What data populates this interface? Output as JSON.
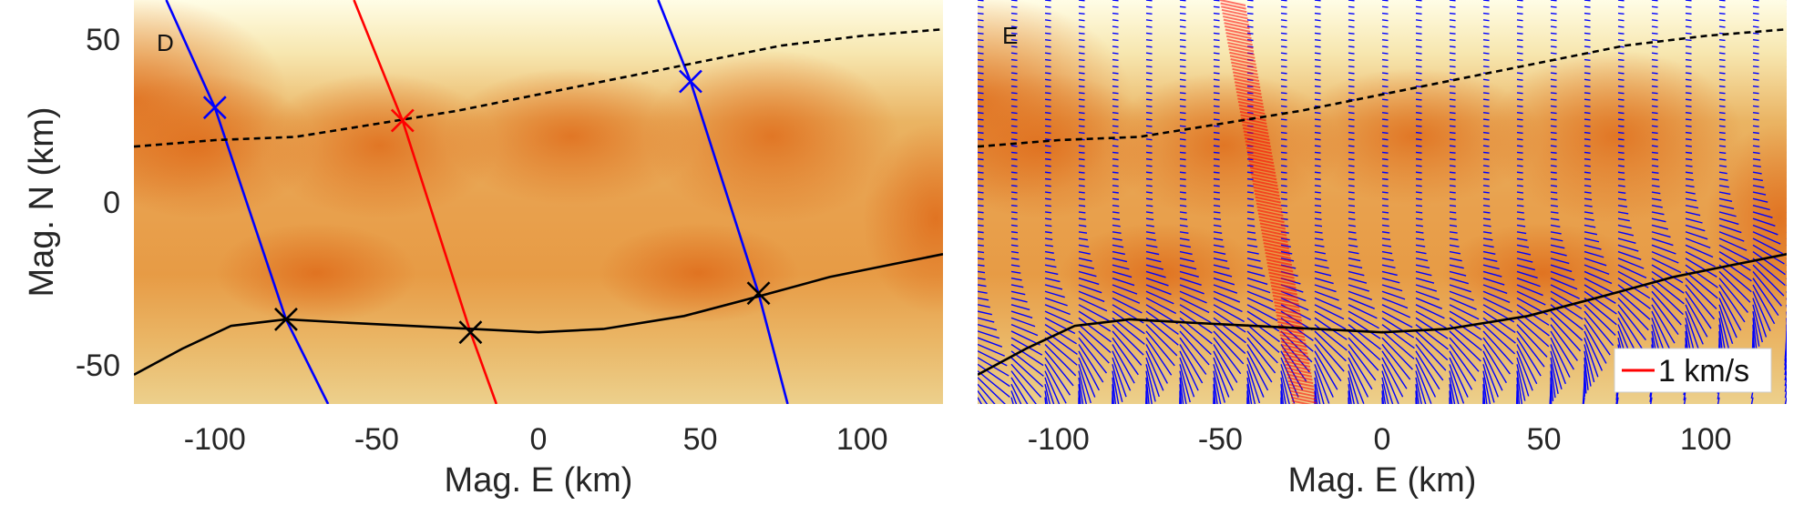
{
  "chart_data": [
    {
      "type": "heatmap",
      "panel_label": "D",
      "xlabel": "Mag. E (km)",
      "ylabel": "Mag. N (km)",
      "xlim": [
        -125,
        125
      ],
      "ylim": [
        -62,
        62
      ],
      "xticks": [
        -100,
        -50,
        0,
        50,
        100
      ],
      "yticks": [
        -50,
        0,
        50
      ],
      "colors": {
        "low": "#fffce0",
        "mid": "#e8a050",
        "high": "#e07020"
      },
      "series": [
        {
          "color": "#0000ff",
          "style": "solid",
          "x": [
            -115,
            -100,
            -78,
            -65
          ],
          "y": [
            62,
            29,
            -36,
            -62
          ]
        },
        {
          "color": "#ff0000",
          "style": "solid",
          "x": [
            -57,
            -42,
            -21,
            -13
          ],
          "y": [
            62,
            25,
            -40,
            -62
          ]
        },
        {
          "color": "#0000ff",
          "style": "solid",
          "x": [
            37,
            47,
            68,
            77
          ],
          "y": [
            62,
            37,
            -28,
            -62
          ]
        },
        {
          "color": "#000000",
          "style": "dashed",
          "x": [
            -125,
            -100,
            -75,
            -50,
            -25,
            0,
            25,
            50,
            75,
            100,
            125
          ],
          "y": [
            17,
            19,
            20,
            24,
            28,
            33,
            38,
            43,
            48,
            51,
            53
          ]
        },
        {
          "color": "#000000",
          "style": "solid",
          "x": [
            -125,
            -110,
            -95,
            -78,
            -60,
            -40,
            -20,
            0,
            20,
            45,
            68,
            90,
            110,
            125
          ],
          "y": [
            -53,
            -45,
            -38,
            -36,
            -37,
            -38,
            -39,
            -40,
            -39,
            -35,
            -29,
            -23,
            -19,
            -16
          ]
        }
      ],
      "markers": [
        {
          "x": -100,
          "y": 29,
          "color": "#0000ff"
        },
        {
          "x": -42,
          "y": 25,
          "color": "#ff0000"
        },
        {
          "x": 47,
          "y": 37,
          "color": "#0000ff"
        },
        {
          "x": -78,
          "y": -36,
          "color": "#000000"
        },
        {
          "x": -21,
          "y": -40,
          "color": "#000000"
        },
        {
          "x": 68,
          "y": -28,
          "color": "#000000"
        }
      ]
    },
    {
      "type": "heatmap",
      "panel_label": "E",
      "xlabel": "Mag. E (km)",
      "xlim": [
        -125,
        125
      ],
      "ylim": [
        -62,
        62
      ],
      "xticks": [
        -100,
        -50,
        0,
        50,
        100
      ],
      "legend": {
        "label": "1 km/s",
        "position": "bottom-right",
        "color": "#ff0000"
      },
      "colors": {
        "vector": "#0000ff",
        "highlight": "#ff0000"
      },
      "vector_field": {
        "columns": 25,
        "rows": 62,
        "highlight_x": -35
      },
      "series": [
        {
          "color": "#000000",
          "style": "dashed",
          "x": [
            -125,
            -100,
            -75,
            -50,
            -25,
            0,
            25,
            50,
            75,
            100,
            125
          ],
          "y": [
            17,
            19,
            20,
            24,
            28,
            33,
            38,
            43,
            48,
            51,
            53
          ]
        },
        {
          "color": "#000000",
          "style": "solid",
          "x": [
            -125,
            -110,
            -95,
            -78,
            -60,
            -40,
            -20,
            0,
            20,
            45,
            68,
            90,
            110,
            125
          ],
          "y": [
            -53,
            -45,
            -38,
            -36,
            -37,
            -38,
            -39,
            -40,
            -39,
            -35,
            -29,
            -23,
            -19,
            -16
          ]
        }
      ]
    }
  ]
}
